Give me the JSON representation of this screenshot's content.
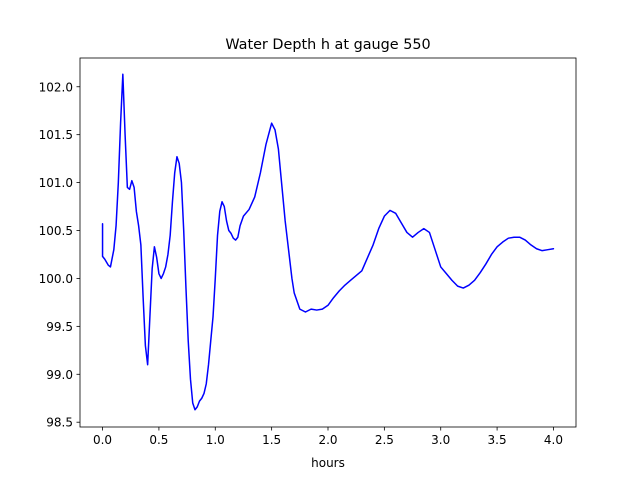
{
  "chart_data": {
    "type": "line",
    "title": "Water Depth h at gauge 550",
    "xlabel": "hours",
    "ylabel": "",
    "xlim": [
      -0.2,
      4.2
    ],
    "ylim": [
      98.45,
      102.3
    ],
    "grid": false,
    "xticks": [
      {
        "value": 0.0,
        "label": "0.0"
      },
      {
        "value": 0.5,
        "label": "0.5"
      },
      {
        "value": 1.0,
        "label": "1.0"
      },
      {
        "value": 1.5,
        "label": "1.5"
      },
      {
        "value": 2.0,
        "label": "2.0"
      },
      {
        "value": 2.5,
        "label": "2.5"
      },
      {
        "value": 3.0,
        "label": "3.0"
      },
      {
        "value": 3.5,
        "label": "3.5"
      },
      {
        "value": 4.0,
        "label": "4.0"
      }
    ],
    "yticks": [
      {
        "value": 98.5,
        "label": "98.5"
      },
      {
        "value": 99.0,
        "label": "99.0"
      },
      {
        "value": 99.5,
        "label": "99.5"
      },
      {
        "value": 100.0,
        "label": "100.0"
      },
      {
        "value": 100.5,
        "label": "100.5"
      },
      {
        "value": 101.0,
        "label": "101.0"
      },
      {
        "value": 101.5,
        "label": "101.5"
      },
      {
        "value": 102.0,
        "label": "102.0"
      }
    ],
    "series": [
      {
        "color": "#0000ff",
        "x": [
          0.0,
          0.0,
          0.02,
          0.05,
          0.07,
          0.1,
          0.12,
          0.14,
          0.16,
          0.18,
          0.2,
          0.22,
          0.24,
          0.26,
          0.28,
          0.3,
          0.32,
          0.34,
          0.36,
          0.38,
          0.4,
          0.42,
          0.44,
          0.46,
          0.48,
          0.5,
          0.52,
          0.54,
          0.56,
          0.58,
          0.6,
          0.62,
          0.64,
          0.66,
          0.68,
          0.7,
          0.72,
          0.74,
          0.76,
          0.78,
          0.8,
          0.82,
          0.84,
          0.86,
          0.88,
          0.9,
          0.92,
          0.94,
          0.96,
          0.98,
          1.0,
          1.02,
          1.04,
          1.06,
          1.08,
          1.1,
          1.12,
          1.14,
          1.16,
          1.18,
          1.2,
          1.22,
          1.25,
          1.3,
          1.35,
          1.4,
          1.45,
          1.5,
          1.53,
          1.56,
          1.58,
          1.6,
          1.62,
          1.65,
          1.68,
          1.7,
          1.75,
          1.8,
          1.85,
          1.9,
          1.95,
          2.0,
          2.05,
          2.1,
          2.15,
          2.2,
          2.3,
          2.4,
          2.45,
          2.5,
          2.55,
          2.6,
          2.65,
          2.7,
          2.75,
          2.8,
          2.85,
          2.9,
          2.95,
          3.0,
          3.05,
          3.1,
          3.15,
          3.2,
          3.25,
          3.3,
          3.35,
          3.4,
          3.45,
          3.5,
          3.55,
          3.6,
          3.65,
          3.7,
          3.75,
          3.8,
          3.85,
          3.9,
          3.95,
          4.0
        ],
        "y": [
          100.57,
          100.23,
          100.2,
          100.14,
          100.12,
          100.3,
          100.55,
          101.0,
          101.62,
          102.13,
          101.5,
          100.95,
          100.93,
          101.02,
          100.95,
          100.7,
          100.55,
          100.35,
          99.8,
          99.3,
          99.1,
          99.6,
          100.1,
          100.33,
          100.22,
          100.05,
          100.0,
          100.05,
          100.12,
          100.25,
          100.45,
          100.8,
          101.1,
          101.27,
          101.2,
          101.0,
          100.5,
          99.9,
          99.35,
          98.95,
          98.7,
          98.63,
          98.66,
          98.72,
          98.75,
          98.8,
          98.9,
          99.1,
          99.35,
          99.6,
          100.0,
          100.45,
          100.7,
          100.8,
          100.75,
          100.6,
          100.5,
          100.47,
          100.42,
          100.4,
          100.43,
          100.55,
          100.65,
          100.72,
          100.85,
          101.1,
          101.4,
          101.62,
          101.55,
          101.35,
          101.1,
          100.85,
          100.6,
          100.3,
          100.0,
          99.85,
          99.68,
          99.65,
          99.68,
          99.67,
          99.68,
          99.72,
          99.8,
          99.87,
          99.93,
          99.98,
          100.08,
          100.35,
          100.52,
          100.65,
          100.71,
          100.68,
          100.58,
          100.48,
          100.43,
          100.48,
          100.52,
          100.48,
          100.3,
          100.12,
          100.05,
          99.98,
          99.92,
          99.9,
          99.93,
          99.98,
          100.06,
          100.15,
          100.25,
          100.33,
          100.38,
          100.42,
          100.43,
          100.43,
          100.4,
          100.35,
          100.31,
          100.29,
          100.3,
          100.31
        ]
      }
    ]
  }
}
